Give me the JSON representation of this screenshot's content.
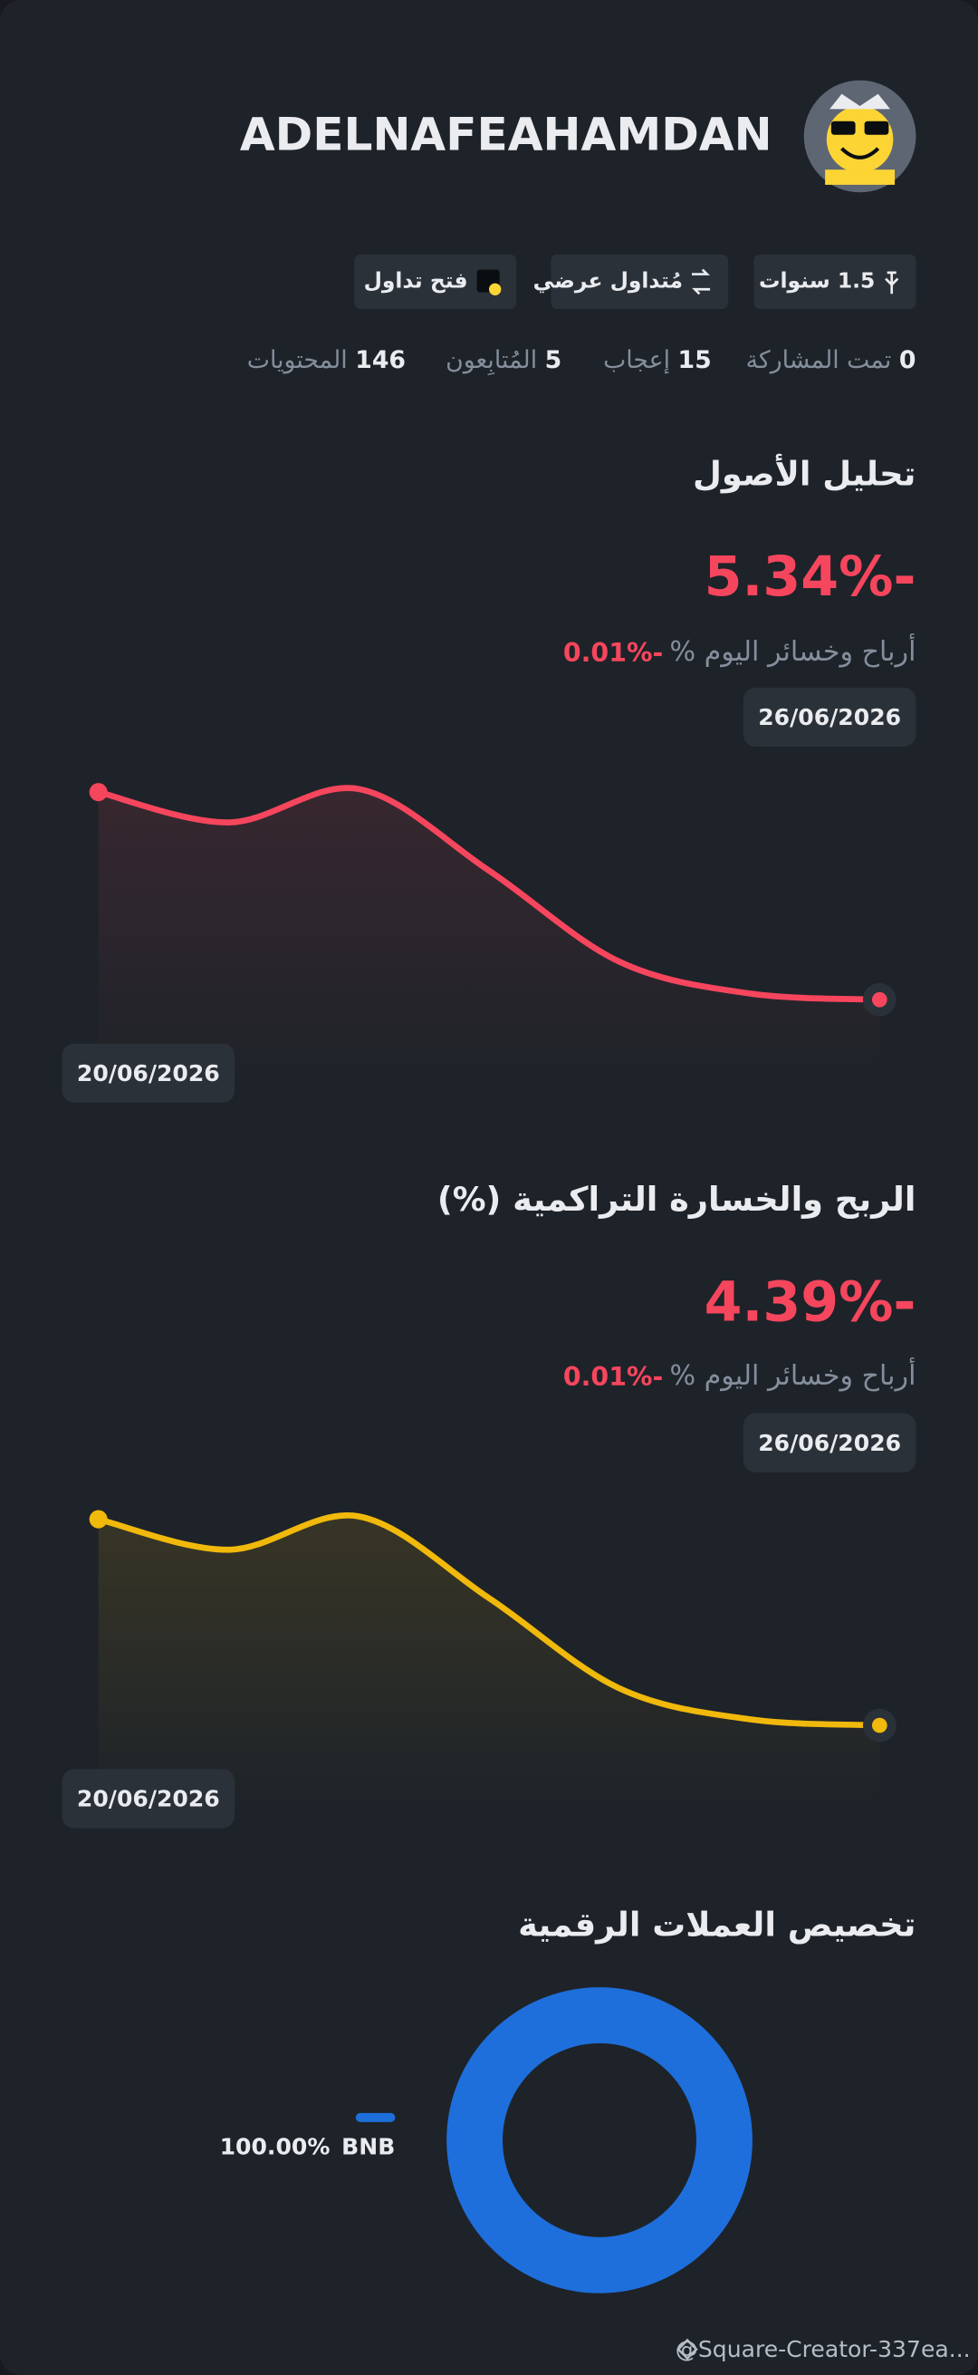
{
  "header": {
    "username": "ADELNAFEAHAMDAN"
  },
  "badges": [
    "1.5 سنوات",
    "مُتداول عرضي",
    "فتح تداول"
  ],
  "stats": [
    {
      "value": "0",
      "label": "تمت المشاركة"
    },
    {
      "value": "15",
      "label": "إعجاب"
    },
    {
      "value": "5",
      "label": "المُتابِعون"
    },
    {
      "value": "146",
      "label": "المحتويات"
    }
  ],
  "chart_data": [
    {
      "type": "line",
      "title": "تحليل الأصول",
      "headline": "-5.34%",
      "today_label": "أرباح وخسائر اليوم %",
      "today_value": "-0.01%",
      "categories": [
        "20/06/2026",
        null,
        null,
        null,
        null,
        null,
        "26/06/2026"
      ],
      "values": [
        0,
        -0.78,
        0.08,
        -2.02,
        -4.36,
        -5.18,
        -5.34
      ],
      "ylim": [
        -7,
        1
      ],
      "color": "#f6465d"
    },
    {
      "type": "line",
      "title": "الربح والخسارة التراكمية (%)",
      "headline": "-4.39%",
      "today_label": "أرباح وخسائر اليوم %",
      "today_value": "-0.01%",
      "categories": [
        "20/06/2026",
        null,
        null,
        null,
        null,
        null,
        "26/06/2026"
      ],
      "values": [
        0,
        -0.65,
        0.06,
        -1.68,
        -3.6,
        -4.26,
        -4.39
      ],
      "ylim": [
        -6,
        1
      ],
      "color": "#f0b90b"
    },
    {
      "type": "pie",
      "title": "تخصيص العملات الرقمية",
      "categories": [
        "BNB"
      ],
      "values": [
        100
      ],
      "value_labels": [
        "100.00%"
      ],
      "colors": [
        "#1e6fdc"
      ]
    }
  ],
  "footer": {
    "author": "@Square-Creator-337ea..."
  }
}
